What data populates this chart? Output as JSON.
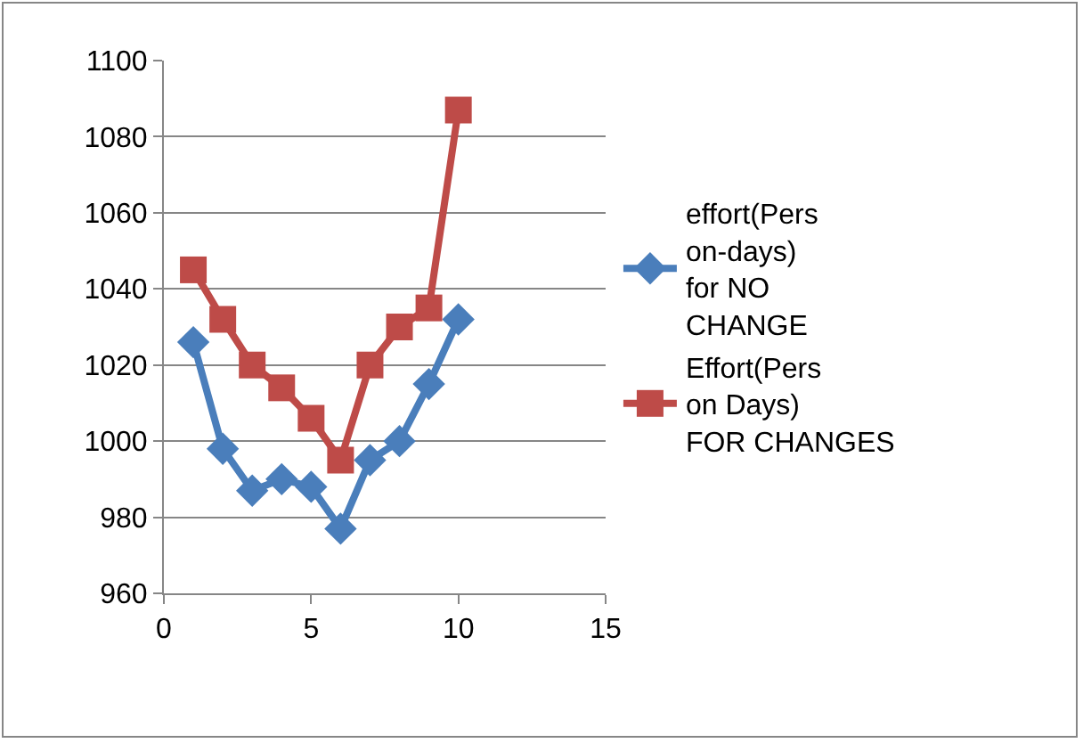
{
  "chart_data": {
    "type": "line",
    "x": [
      1,
      2,
      3,
      4,
      5,
      6,
      7,
      8,
      9,
      10
    ],
    "series": [
      {
        "name": "effort(Person-days) for NO CHANGE",
        "color": "#4a7ebb",
        "marker": "diamond",
        "values": [
          1026,
          998,
          987,
          990,
          988,
          977,
          995,
          1000,
          1015,
          1032
        ]
      },
      {
        "name": "Effort(Person Days) FOR CHANGES",
        "color": "#be4b48",
        "marker": "square",
        "values": [
          1045,
          1032,
          1020,
          1014,
          1006,
          995,
          1020,
          1030,
          1035,
          1087
        ]
      }
    ],
    "xlim": [
      0,
      15
    ],
    "xticks": [
      0,
      5,
      10,
      15
    ],
    "ylim": [
      960,
      1100
    ],
    "yticks": [
      960,
      980,
      1000,
      1020,
      1040,
      1060,
      1080,
      1100
    ],
    "grid": "y",
    "legend": "right",
    "line_style": "solid"
  }
}
